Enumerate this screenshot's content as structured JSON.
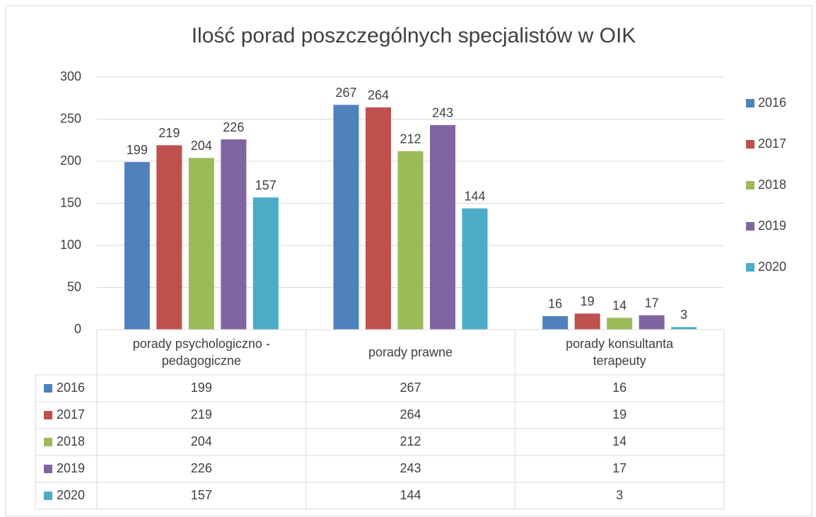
{
  "chart_data": {
    "type": "bar",
    "title": "Ilość porad poszczególnych specjalistów w OIK",
    "categories": [
      "porady psychologiczno - pedagogiczne",
      "porady prawne",
      "porady konsultanta terapeuty"
    ],
    "series": [
      {
        "name": "2016",
        "color": "#4f81bd",
        "values": [
          199,
          267,
          16
        ]
      },
      {
        "name": "2017",
        "color": "#c0504d",
        "values": [
          219,
          264,
          19
        ]
      },
      {
        "name": "2018",
        "color": "#9bbb59",
        "values": [
          204,
          212,
          14
        ]
      },
      {
        "name": "2019",
        "color": "#8064a2",
        "values": [
          226,
          243,
          17
        ]
      },
      {
        "name": "2020",
        "color": "#4bacc6",
        "values": [
          157,
          144,
          3
        ]
      }
    ],
    "ylim": [
      0,
      300
    ],
    "yticks": [
      0,
      50,
      100,
      150,
      200,
      250,
      300
    ],
    "grid": true,
    "legend": "right",
    "data_table": true
  }
}
